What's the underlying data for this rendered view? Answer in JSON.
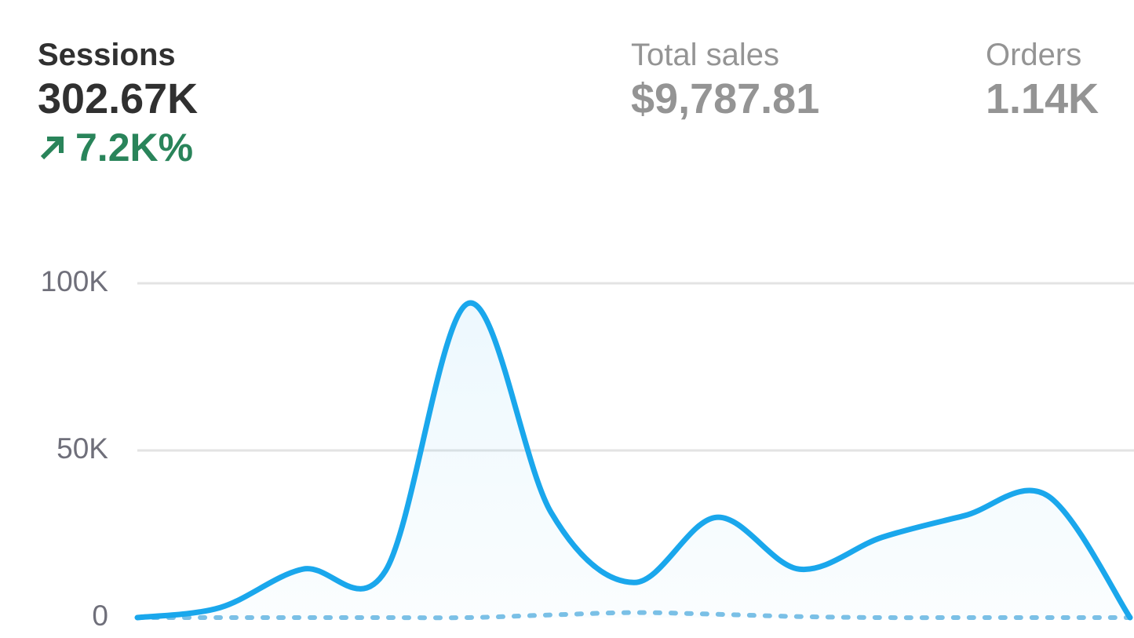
{
  "metrics": [
    {
      "label": "Sessions",
      "value": "302.67K",
      "change": "7.2K%"
    },
    {
      "label": "Total sales",
      "value": "$9,787.81"
    },
    {
      "label": "Orders",
      "value": "1.14K"
    }
  ],
  "chart_data": {
    "type": "line",
    "series": [
      {
        "color": "#1aa7ec",
        "values": [
          0,
          3000,
          14500,
          14000,
          94000,
          31500,
          10500,
          30000,
          14500,
          24000,
          30500,
          36500,
          0
        ]
      },
      {
        "color": "#7cc0e6",
        "values": [
          0,
          0,
          0,
          0,
          0,
          800,
          1500,
          1000,
          300,
          0,
          0,
          0,
          0
        ],
        "dashed": true
      }
    ],
    "ylim": [
      0,
      100000
    ],
    "yticks": [
      0,
      {
        "value": 50000,
        "label": "50K"
      },
      {
        "value": 100000,
        "label": "100K"
      }
    ],
    "grid": true
  }
}
